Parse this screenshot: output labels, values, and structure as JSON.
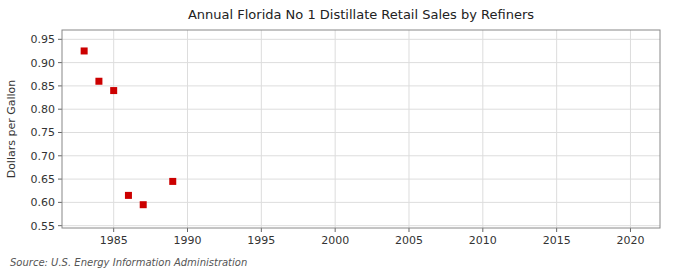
{
  "chart_data": {
    "type": "scatter",
    "title": "Annual Florida No 1 Distillate Retail Sales by Refiners",
    "ylabel": "Dollars per Gallon",
    "source": "Source: U.S. Energy Information Administration",
    "x": [
      1983,
      1984,
      1985,
      1986,
      1987,
      1989
    ],
    "values": [
      0.925,
      0.86,
      0.84,
      0.615,
      0.595,
      0.645
    ],
    "color": "#cc0000",
    "marker": "square",
    "xlim": [
      1981.5,
      2022
    ],
    "ylim": [
      0.545,
      0.97
    ],
    "xticks": [
      1985,
      1990,
      1995,
      2000,
      2005,
      2010,
      2015,
      2020
    ],
    "yticks": [
      0.55,
      {
        "value": 0.6,
        "label": "0.60"
      },
      0.65,
      {
        "value": 0.7,
        "label": "0.70"
      },
      0.75,
      {
        "value": 0.8,
        "label": "0.80"
      },
      0.85,
      {
        "value": 0.9,
        "label": "0.90"
      },
      0.95
    ],
    "grid": true
  }
}
